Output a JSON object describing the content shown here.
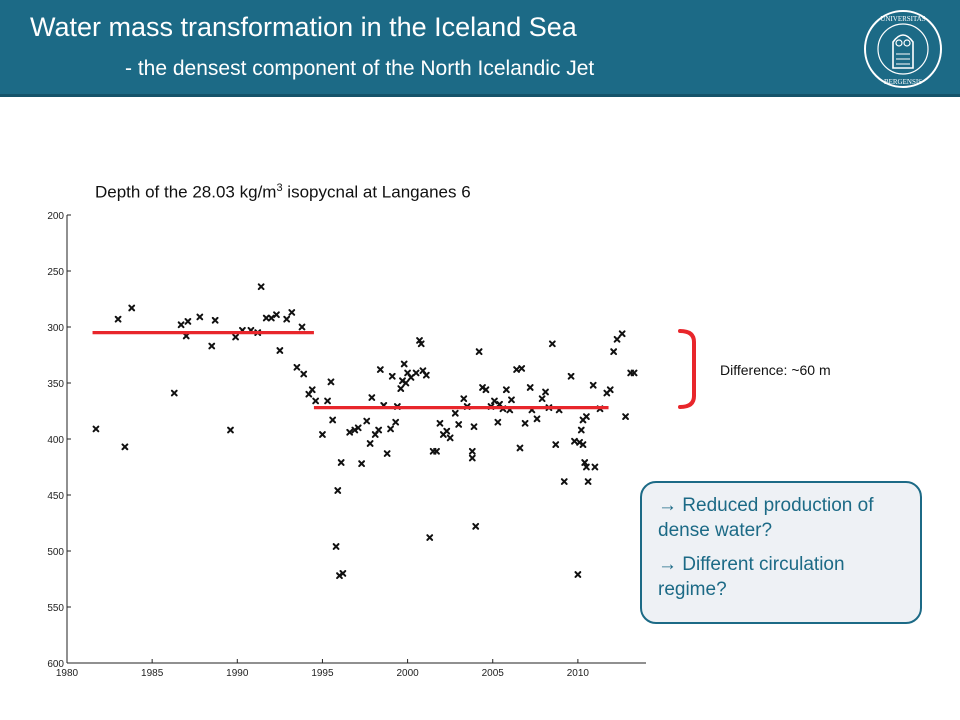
{
  "header": {
    "title": "Water mass transformation in the Iceland Sea",
    "subtitle": "- the densest component of the North Icelandic Jet",
    "logo_text": "UNIVERSITAS BERGENSIS",
    "background": "#1c6a86"
  },
  "annotation": {
    "difference_label": "Difference: ~60 m",
    "bracket_color": "#e8262b"
  },
  "callout": {
    "line1": "→ Reduced production of dense water?",
    "line2": "→ Different circulation regime?",
    "accent": "#1c6a86"
  },
  "chart_data": {
    "type": "scatter",
    "title_prefix": "Depth of the 28.03 kg/m",
    "title_sup": "3",
    "title_suffix": " isopycnal at Langanes 6",
    "xlim": [
      1980,
      2014
    ],
    "ylim": [
      200,
      600
    ],
    "y_inverted": true,
    "xticks": [
      1980,
      1985,
      1990,
      1995,
      2000,
      2005,
      2010
    ],
    "yticks": [
      200,
      250,
      300,
      350,
      400,
      450,
      500,
      550,
      600
    ],
    "marker": "x",
    "mean_lines": [
      {
        "x": [
          1981.5,
          1994.5
        ],
        "y": 305,
        "color": "#e8262b"
      },
      {
        "x": [
          1994.5,
          2011.8
        ],
        "y": 372,
        "color": "#e8262b"
      }
    ],
    "points": [
      [
        1981.7,
        391
      ],
      [
        1983.0,
        293
      ],
      [
        1983.4,
        407
      ],
      [
        1983.8,
        283
      ],
      [
        1986.3,
        359
      ],
      [
        1986.7,
        298
      ],
      [
        1987.0,
        308
      ],
      [
        1987.1,
        295
      ],
      [
        1987.8,
        291
      ],
      [
        1988.5,
        317
      ],
      [
        1988.7,
        294
      ],
      [
        1989.6,
        392
      ],
      [
        1989.9,
        309
      ],
      [
        1990.3,
        303
      ],
      [
        1990.8,
        303
      ],
      [
        1991.2,
        305
      ],
      [
        1991.4,
        264
      ],
      [
        1991.7,
        292
      ],
      [
        1992.0,
        292
      ],
      [
        1992.3,
        289
      ],
      [
        1992.5,
        321
      ],
      [
        1992.9,
        293
      ],
      [
        1993.2,
        287
      ],
      [
        1993.5,
        336
      ],
      [
        1993.8,
        300
      ],
      [
        1993.9,
        342
      ],
      [
        1994.2,
        360
      ],
      [
        1994.4,
        356
      ],
      [
        1994.6,
        366
      ],
      [
        1995.0,
        396
      ],
      [
        1995.3,
        366
      ],
      [
        1995.5,
        349
      ],
      [
        1995.6,
        383
      ],
      [
        1995.8,
        496
      ],
      [
        1995.9,
        446
      ],
      [
        1996.0,
        522
      ],
      [
        1996.2,
        520
      ],
      [
        1996.1,
        421
      ],
      [
        1996.6,
        394
      ],
      [
        1996.9,
        392
      ],
      [
        1997.1,
        390
      ],
      [
        1997.3,
        422
      ],
      [
        1997.8,
        404
      ],
      [
        1997.6,
        384
      ],
      [
        1997.9,
        363
      ],
      [
        1998.1,
        396
      ],
      [
        1998.3,
        392
      ],
      [
        1998.4,
        338
      ],
      [
        1998.6,
        370
      ],
      [
        1998.8,
        413
      ],
      [
        1999.0,
        391
      ],
      [
        1999.1,
        344
      ],
      [
        1999.3,
        385
      ],
      [
        1999.4,
        371
      ],
      [
        1999.6,
        355
      ],
      [
        1999.7,
        348
      ],
      [
        1999.8,
        333
      ],
      [
        1999.9,
        350
      ],
      [
        2000.0,
        341
      ],
      [
        2000.2,
        345
      ],
      [
        2000.5,
        341
      ],
      [
        2000.7,
        312
      ],
      [
        2000.8,
        315
      ],
      [
        2000.9,
        339
      ],
      [
        2001.1,
        343
      ],
      [
        2001.3,
        488
      ],
      [
        2001.5,
        411
      ],
      [
        2001.7,
        411
      ],
      [
        2001.9,
        386
      ],
      [
        2002.1,
        396
      ],
      [
        2002.3,
        393
      ],
      [
        2002.5,
        399
      ],
      [
        2002.8,
        377
      ],
      [
        2003.0,
        387
      ],
      [
        2003.3,
        364
      ],
      [
        2003.5,
        371
      ],
      [
        2003.8,
        411
      ],
      [
        2003.8,
        417
      ],
      [
        2003.9,
        389
      ],
      [
        2004.0,
        478
      ],
      [
        2004.2,
        322
      ],
      [
        2004.4,
        354
      ],
      [
        2004.6,
        356
      ],
      [
        2004.9,
        371
      ],
      [
        2005.1,
        366
      ],
      [
        2005.3,
        385
      ],
      [
        2005.4,
        369
      ],
      [
        2005.6,
        373
      ],
      [
        2005.8,
        356
      ],
      [
        2006.0,
        374
      ],
      [
        2006.1,
        365
      ],
      [
        2006.4,
        338
      ],
      [
        2006.6,
        408
      ],
      [
        2006.7,
        337
      ],
      [
        2006.9,
        386
      ],
      [
        2007.2,
        354
      ],
      [
        2007.3,
        374
      ],
      [
        2007.6,
        382
      ],
      [
        2007.9,
        364
      ],
      [
        2008.1,
        358
      ],
      [
        2008.3,
        372
      ],
      [
        2008.5,
        315
      ],
      [
        2008.7,
        405
      ],
      [
        2008.9,
        374
      ],
      [
        2009.2,
        438
      ],
      [
        2009.6,
        344
      ],
      [
        2009.8,
        402
      ],
      [
        2010.0,
        521
      ],
      [
        2010.1,
        403
      ],
      [
        2010.2,
        392
      ],
      [
        2010.3,
        383
      ],
      [
        2010.3,
        405
      ],
      [
        2010.4,
        421
      ],
      [
        2010.5,
        425
      ],
      [
        2010.6,
        438
      ],
      [
        2010.5,
        380
      ],
      [
        2010.9,
        352
      ],
      [
        2011.0,
        425
      ],
      [
        2011.3,
        373
      ],
      [
        2011.7,
        359
      ],
      [
        2011.9,
        356
      ],
      [
        2012.1,
        322
      ],
      [
        2012.3,
        311
      ],
      [
        2012.6,
        306
      ],
      [
        2012.8,
        380
      ],
      [
        2013.1,
        341
      ],
      [
        2013.3,
        341
      ]
    ]
  }
}
